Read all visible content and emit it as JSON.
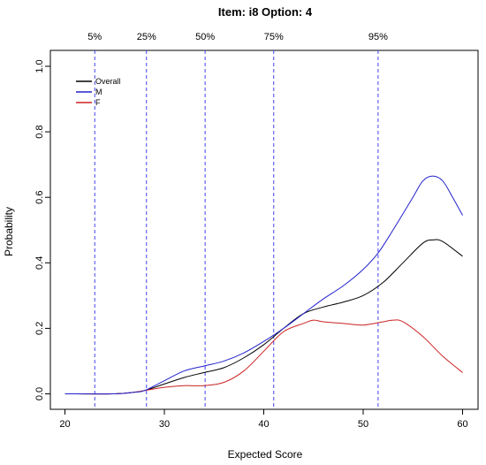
{
  "chart_data": {
    "type": "line",
    "title": "Item:  i8   Option:  4",
    "xlabel": "Expected Score",
    "ylabel": "Probability",
    "xlim": [
      20,
      60
    ],
    "ylim": [
      0,
      1.0
    ],
    "x_ticks": [
      "20",
      "30",
      "40",
      "50",
      "60"
    ],
    "y_ticks": [
      "0.0",
      "0.2",
      "0.4",
      "0.6",
      "0.8",
      "1.0"
    ],
    "grid": false,
    "legend": {
      "placement": "top-left"
    },
    "series": [
      {
        "name": "Overall",
        "color": "#000000",
        "x": [
          20,
          25,
          27,
          28,
          30,
          32,
          34,
          36,
          38,
          40,
          42,
          44,
          46,
          48,
          50,
          52,
          54,
          56,
          57,
          58,
          60
        ],
        "y": [
          0,
          0,
          0.005,
          0.01,
          0.03,
          0.05,
          0.065,
          0.08,
          0.11,
          0.15,
          0.2,
          0.245,
          0.265,
          0.28,
          0.3,
          0.34,
          0.4,
          0.46,
          0.47,
          0.465,
          0.42
        ]
      },
      {
        "name": "M",
        "color": "#2222cc",
        "x": [
          20,
          25,
          27,
          28,
          30,
          32,
          34,
          36,
          38,
          40,
          42,
          44,
          46,
          48,
          50,
          51.5,
          53,
          55,
          56,
          57,
          58,
          59,
          60
        ],
        "y": [
          0,
          0,
          0.005,
          0.01,
          0.04,
          0.07,
          0.085,
          0.1,
          0.125,
          0.16,
          0.2,
          0.245,
          0.29,
          0.33,
          0.38,
          0.43,
          0.5,
          0.6,
          0.65,
          0.665,
          0.65,
          0.6,
          0.545
        ]
      },
      {
        "name": "F",
        "color": "#cc2222",
        "x": [
          20,
          25,
          27,
          28,
          30,
          32,
          34,
          36,
          38,
          40,
          42,
          44,
          45,
          46,
          48,
          50,
          52,
          53,
          54,
          56,
          58,
          60
        ],
        "y": [
          0,
          0,
          0.005,
          0.01,
          0.02,
          0.025,
          0.025,
          0.035,
          0.07,
          0.13,
          0.19,
          0.215,
          0.225,
          0.22,
          0.215,
          0.21,
          0.22,
          0.225,
          0.22,
          0.175,
          0.115,
          0.065
        ]
      }
    ],
    "percentile_lines": [
      {
        "label": "5%",
        "x": 23
      },
      {
        "label": "25%",
        "x": 28.2
      },
      {
        "label": "50%",
        "x": 34.1
      },
      {
        "label": "75%",
        "x": 41
      },
      {
        "label": "95%",
        "x": 51.5
      }
    ],
    "percentile_line_color": "#4444ee"
  }
}
